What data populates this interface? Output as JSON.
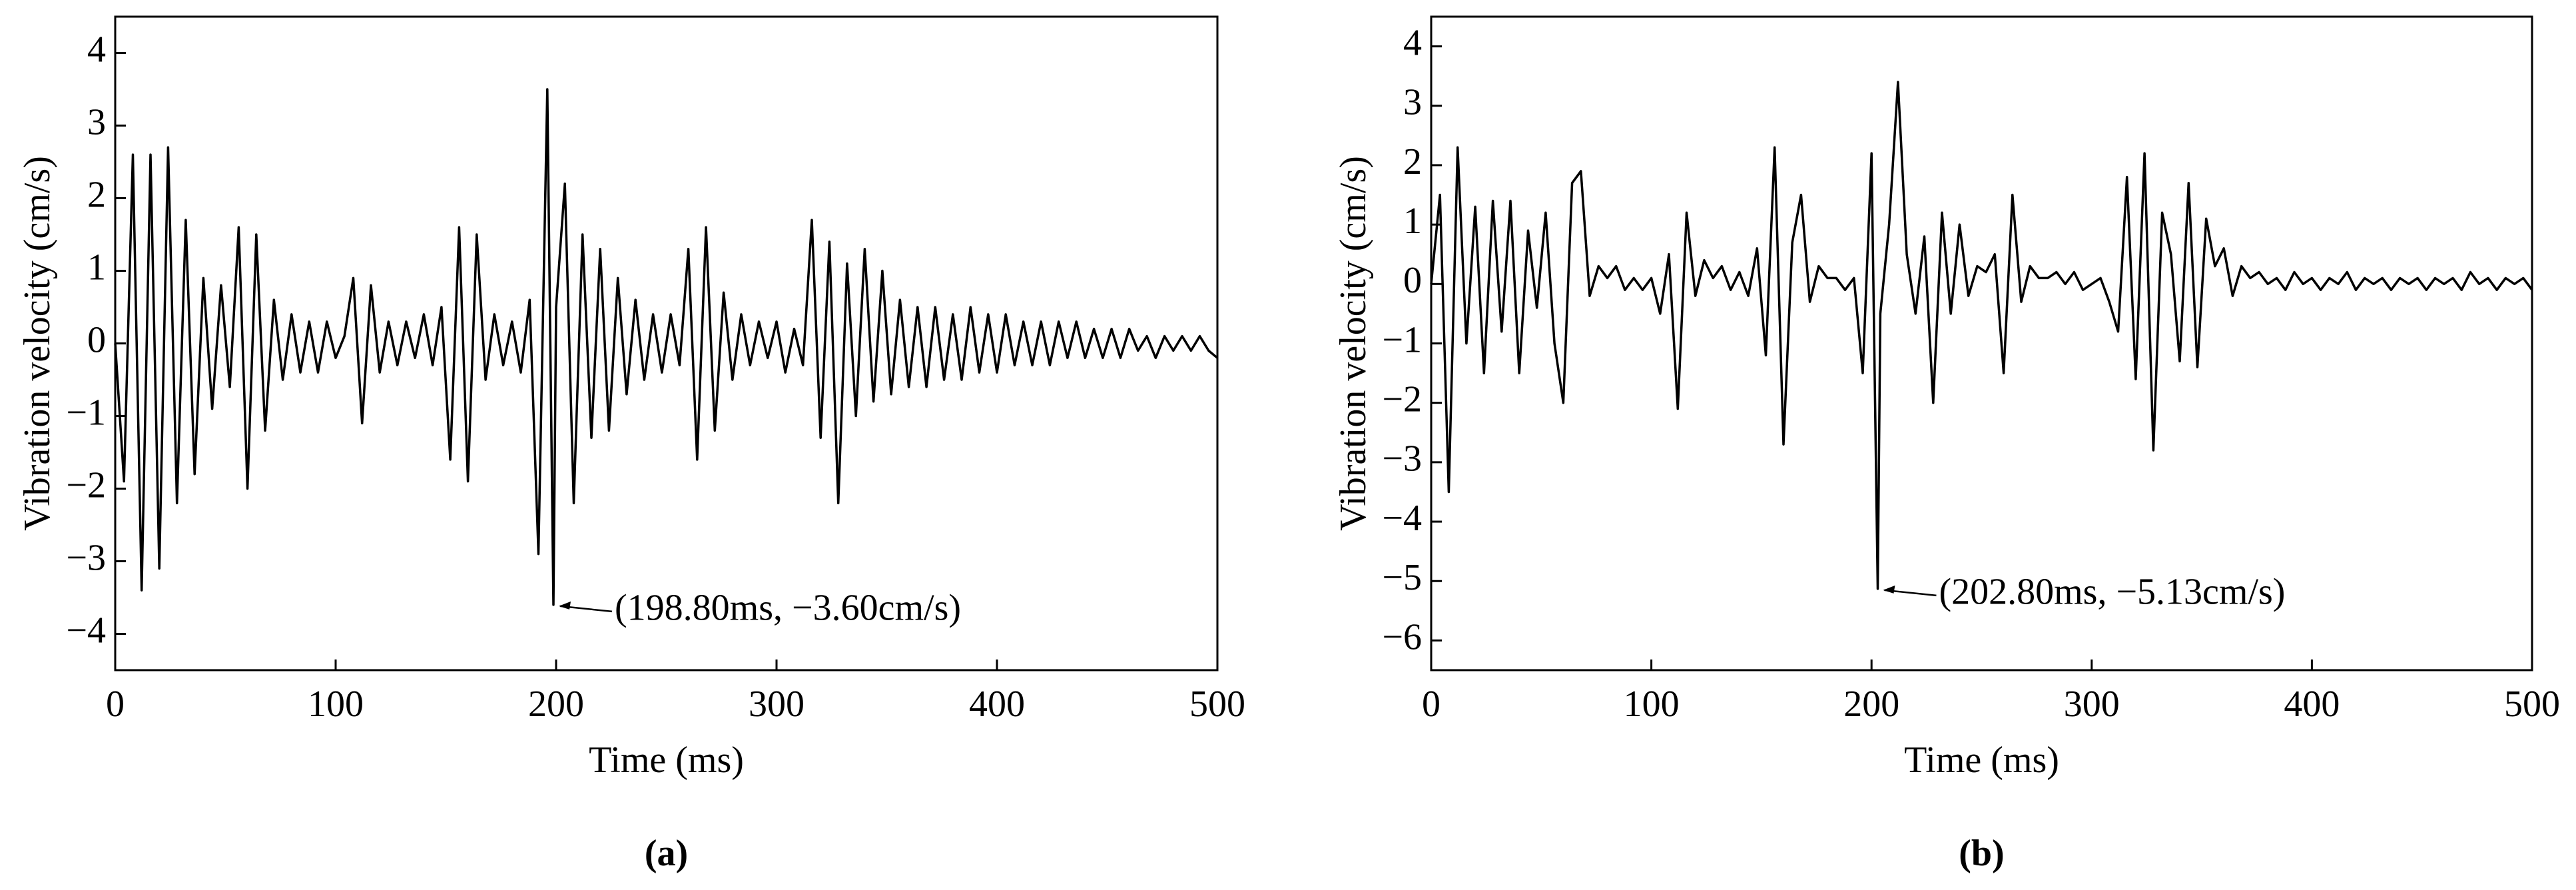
{
  "chart_data": [
    {
      "type": "line",
      "xlabel": "Time (ms)",
      "ylabel": "Vibration velocity (cm/s)",
      "panel_label": "(a)",
      "color": "#000000",
      "xlim": [
        0,
        500
      ],
      "ylim": [
        -4.5,
        4.5
      ],
      "xticks": [
        0,
        100,
        200,
        300,
        400,
        500
      ],
      "yticks": [
        {
          "value": -4,
          "label": "−4"
        },
        {
          "value": -3,
          "label": "−3"
        },
        {
          "value": -2,
          "label": "−2"
        },
        {
          "value": -1,
          "label": "−1"
        },
        0,
        1,
        2,
        3,
        4
      ],
      "x": [
        0,
        4,
        8,
        12,
        16,
        20,
        24,
        28,
        32,
        36,
        40,
        44,
        48,
        52,
        56,
        60,
        64,
        68,
        72,
        76,
        80,
        84,
        88,
        92,
        96,
        100,
        104,
        108,
        112,
        116,
        120,
        124,
        128,
        132,
        136,
        140,
        144,
        148,
        152,
        156,
        160,
        164,
        168,
        172,
        176,
        180,
        184,
        188,
        192,
        196,
        198.8,
        200,
        204,
        208,
        212,
        216,
        220,
        224,
        228,
        232,
        236,
        240,
        244,
        248,
        252,
        256,
        260,
        264,
        268,
        272,
        276,
        280,
        284,
        288,
        292,
        296,
        300,
        304,
        308,
        312,
        316,
        320,
        324,
        328,
        332,
        336,
        340,
        344,
        348,
        352,
        356,
        360,
        364,
        368,
        372,
        376,
        380,
        384,
        388,
        392,
        396,
        400,
        404,
        408,
        412,
        416,
        420,
        424,
        428,
        432,
        436,
        440,
        444,
        448,
        452,
        456,
        460,
        464,
        468,
        472,
        476,
        480,
        484,
        488,
        492,
        496,
        500
      ],
      "values": [
        0,
        -1.9,
        2.6,
        -3.4,
        2.6,
        -3.1,
        2.7,
        -2.2,
        1.7,
        -1.8,
        0.9,
        -0.9,
        0.8,
        -0.6,
        1.6,
        -2.0,
        1.5,
        -1.2,
        0.6,
        -0.5,
        0.4,
        -0.4,
        0.3,
        -0.4,
        0.3,
        -0.2,
        0.1,
        0.9,
        -1.1,
        0.8,
        -0.4,
        0.3,
        -0.3,
        0.3,
        -0.2,
        0.4,
        -0.3,
        0.5,
        -1.6,
        1.6,
        -1.9,
        1.5,
        -0.5,
        0.4,
        -0.3,
        0.3,
        -0.4,
        0.6,
        -2.9,
        3.5,
        -3.6,
        0.5,
        2.2,
        -2.2,
        1.5,
        -1.3,
        1.3,
        -1.2,
        0.9,
        -0.7,
        0.6,
        -0.5,
        0.4,
        -0.4,
        0.4,
        -0.3,
        1.3,
        -1.6,
        1.6,
        -1.2,
        0.7,
        -0.5,
        0.4,
        -0.3,
        0.3,
        -0.2,
        0.3,
        -0.4,
        0.2,
        -0.3,
        1.7,
        -1.3,
        1.4,
        -2.2,
        1.1,
        -1.0,
        1.3,
        -0.8,
        1.0,
        -0.7,
        0.6,
        -0.6,
        0.5,
        -0.6,
        0.5,
        -0.5,
        0.4,
        -0.5,
        0.5,
        -0.4,
        0.4,
        -0.4,
        0.4,
        -0.3,
        0.3,
        -0.3,
        0.3,
        -0.3,
        0.3,
        -0.2,
        0.3,
        -0.2,
        0.2,
        -0.2,
        0.2,
        -0.2,
        0.2,
        -0.1,
        0.1,
        -0.2,
        0.1,
        -0.1,
        0.1,
        -0.1,
        0.1,
        -0.1,
        -0.2
      ],
      "annotation": {
        "text": "(198.80ms, −3.60cm/s)",
        "x": 198.8,
        "y": -3.6
      }
    },
    {
      "type": "line",
      "xlabel": "Time (ms)",
      "ylabel": "Vibration velocity (cm/s)",
      "panel_label": "(b)",
      "color": "#000000",
      "xlim": [
        0,
        500
      ],
      "ylim": [
        -6.5,
        4.5
      ],
      "xticks": [
        0,
        100,
        200,
        300,
        400,
        500
      ],
      "yticks": [
        {
          "value": -6,
          "label": "−6"
        },
        {
          "value": -5,
          "label": "−5"
        },
        {
          "value": -4,
          "label": "−4"
        },
        {
          "value": -3,
          "label": "−3"
        },
        {
          "value": -2,
          "label": "−2"
        },
        {
          "value": -1,
          "label": "−1"
        },
        0,
        1,
        2,
        3,
        4
      ],
      "x": [
        0,
        4,
        8,
        12,
        16,
        20,
        24,
        28,
        32,
        36,
        40,
        44,
        48,
        52,
        56,
        60,
        64,
        68,
        72,
        76,
        80,
        84,
        88,
        92,
        96,
        100,
        104,
        108,
        112,
        116,
        120,
        124,
        128,
        132,
        136,
        140,
        144,
        148,
        152,
        156,
        160,
        164,
        168,
        172,
        176,
        180,
        184,
        188,
        192,
        196,
        200,
        202.8,
        204,
        208,
        212,
        216,
        220,
        224,
        228,
        232,
        236,
        240,
        244,
        248,
        252,
        256,
        260,
        264,
        268,
        272,
        276,
        280,
        284,
        288,
        292,
        296,
        300,
        304,
        308,
        312,
        316,
        320,
        324,
        328,
        332,
        336,
        340,
        344,
        348,
        352,
        356,
        360,
        364,
        368,
        372,
        376,
        380,
        384,
        388,
        392,
        396,
        400,
        404,
        408,
        412,
        416,
        420,
        424,
        428,
        432,
        436,
        440,
        444,
        448,
        452,
        456,
        460,
        464,
        468,
        472,
        476,
        480,
        484,
        488,
        492,
        496,
        500
      ],
      "values": [
        0,
        1.5,
        -3.5,
        2.3,
        -1.0,
        1.3,
        -1.5,
        1.4,
        -0.8,
        1.4,
        -1.5,
        0.9,
        -0.4,
        1.2,
        -1.0,
        -2.0,
        1.7,
        1.9,
        -0.2,
        0.3,
        0.1,
        0.3,
        -0.1,
        0.1,
        -0.1,
        0.1,
        -0.5,
        0.5,
        -2.1,
        1.2,
        -0.2,
        0.4,
        0.1,
        0.3,
        -0.1,
        0.2,
        -0.2,
        0.6,
        -1.2,
        2.3,
        -2.7,
        0.7,
        1.5,
        -0.3,
        0.3,
        0.1,
        0.1,
        -0.1,
        0.1,
        -1.5,
        2.2,
        -5.13,
        -0.5,
        1.0,
        3.4,
        0.5,
        -0.5,
        0.8,
        -2.0,
        1.2,
        -0.5,
        1.0,
        -0.2,
        0.3,
        0.2,
        0.5,
        -1.5,
        1.5,
        -0.3,
        0.3,
        0.1,
        0.1,
        0.2,
        0.0,
        0.2,
        -0.1,
        0.0,
        0.1,
        -0.3,
        -0.8,
        1.8,
        -1.6,
        2.2,
        -2.8,
        1.2,
        0.5,
        -1.3,
        1.7,
        -1.4,
        1.1,
        0.3,
        0.6,
        -0.2,
        0.3,
        0.1,
        0.2,
        0.0,
        0.1,
        -0.1,
        0.2,
        0.0,
        0.1,
        -0.1,
        0.1,
        0.0,
        0.2,
        -0.1,
        0.1,
        0.0,
        0.1,
        -0.1,
        0.1,
        0.0,
        0.1,
        -0.1,
        0.1,
        0.0,
        0.1,
        -0.1,
        0.2,
        0.0,
        0.1,
        -0.1,
        0.1,
        0.0,
        0.1,
        -0.1
      ],
      "annotation": {
        "text": "(202.80ms, −5.13cm/s)",
        "x": 202.8,
        "y": -5.13
      }
    }
  ]
}
